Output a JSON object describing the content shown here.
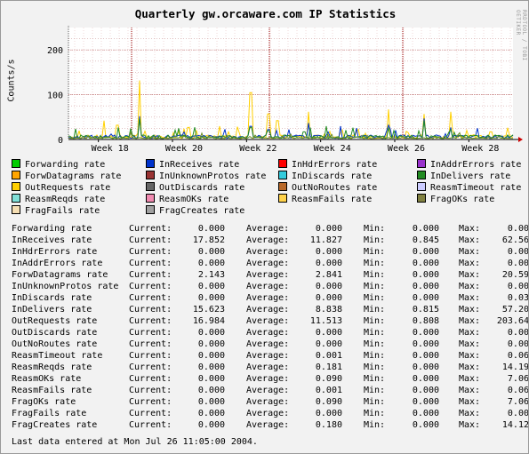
{
  "chart_data": {
    "type": "line",
    "title": "Quarterly gw.orcaware.com IP Statistics",
    "ylabel": "Counts/s",
    "credit": "RRDTOOL / TOBI OETIKER",
    "ylim": [
      0,
      250
    ],
    "yticks": [
      0,
      100,
      200
    ],
    "xticks": [
      "Week 18",
      "Week 20",
      "Week 22",
      "Week 24",
      "Week 26",
      "Week 28"
    ],
    "grid": true,
    "legend_placement": "bottom",
    "series_draw": [
      {
        "name": "OutRequests rate",
        "color": "#ffd000",
        "peaks": [
          [
            0.08,
            40
          ],
          [
            0.11,
            60
          ],
          [
            0.16,
            130
          ],
          [
            0.27,
            50
          ],
          [
            0.41,
            205
          ],
          [
            0.45,
            110
          ],
          [
            0.47,
            80
          ],
          [
            0.54,
            60
          ],
          [
            0.72,
            65
          ],
          [
            0.8,
            55
          ],
          [
            0.86,
            60
          ],
          [
            0.95,
            30
          ]
        ]
      },
      {
        "name": "InReceives rate",
        "color": "#0033cc",
        "peaks": [
          [
            0.16,
            50
          ],
          [
            0.41,
            55
          ],
          [
            0.45,
            40
          ],
          [
            0.54,
            35
          ],
          [
            0.72,
            30
          ],
          [
            0.8,
            45
          ],
          [
            0.86,
            25
          ]
        ]
      },
      {
        "name": "InDelivers rate",
        "color": "#228b22",
        "peaks": [
          [
            0.16,
            45
          ],
          [
            0.41,
            50
          ],
          [
            0.45,
            35
          ],
          [
            0.53,
            30
          ],
          [
            0.72,
            25
          ],
          [
            0.8,
            40
          ],
          [
            0.86,
            20
          ]
        ]
      },
      {
        "name": "ReasmReqds rate",
        "color": "#6b8e23",
        "peaks": [
          [
            0.14,
            14
          ],
          [
            0.3,
            12
          ],
          [
            0.5,
            10
          ],
          [
            0.65,
            8
          ],
          [
            0.88,
            13
          ]
        ]
      }
    ]
  },
  "legend": [
    {
      "label": "Forwarding rate",
      "color": "#00cc00"
    },
    {
      "label": "InReceives rate",
      "color": "#0033cc"
    },
    {
      "label": "InHdrErrors rate",
      "color": "#ff0000"
    },
    {
      "label": "InAddrErrors rate",
      "color": "#9933cc"
    },
    {
      "label": "ForwDatagrams rate",
      "color": "#ffa500"
    },
    {
      "label": "InUnknownProtos rate",
      "color": "#993333"
    },
    {
      "label": "InDiscards rate",
      "color": "#33ccdd"
    },
    {
      "label": "InDelivers rate",
      "color": "#228b22"
    },
    {
      "label": "OutRequests rate",
      "color": "#ffd000"
    },
    {
      "label": "OutDiscards rate",
      "color": "#666666"
    },
    {
      "label": "OutNoRoutes rate",
      "color": "#b8692a"
    },
    {
      "label": "ReasmTimeout rate",
      "color": "#ccccff"
    },
    {
      "label": "ReasmReqds rate",
      "color": "#80e0d8"
    },
    {
      "label": "ReasmOKs rate",
      "color": "#f08ab0"
    },
    {
      "label": "ReasmFails rate",
      "color": "#ffd24a"
    },
    {
      "label": "FragOKs rate",
      "color": "#808040"
    },
    {
      "label": "FragFails rate",
      "color": "#f5deb3"
    },
    {
      "label": "FragCreates rate",
      "color": "#a0a0a0"
    }
  ],
  "stat_labels": {
    "current": "Current:",
    "average": "Average:",
    "min": "Min:",
    "max": "Max:"
  },
  "stats": [
    {
      "name": "Forwarding rate",
      "current": "0.000",
      "average": "0.000",
      "min": "0.000",
      "max": "0.00"
    },
    {
      "name": "InReceives rate",
      "current": "17.852",
      "average": "11.827",
      "min": "0.845",
      "max": "62.56"
    },
    {
      "name": "InHdrErrors rate",
      "current": "0.000",
      "average": "0.000",
      "min": "0.000",
      "max": "0.00"
    },
    {
      "name": "InAddrErrors rate",
      "current": "0.000",
      "average": "0.000",
      "min": "0.000",
      "max": "0.00"
    },
    {
      "name": "ForwDatagrams rate",
      "current": "2.143",
      "average": "2.841",
      "min": "0.000",
      "max": "20.59"
    },
    {
      "name": "InUnknownProtos rate",
      "current": "0.000",
      "average": "0.000",
      "min": "0.000",
      "max": "0.00"
    },
    {
      "name": "InDiscards rate",
      "current": "0.000",
      "average": "0.000",
      "min": "0.000",
      "max": "0.03"
    },
    {
      "name": "InDelivers rate",
      "current": "15.623",
      "average": "8.838",
      "min": "0.815",
      "max": "57.20"
    },
    {
      "name": "OutRequests rate",
      "current": "16.984",
      "average": "11.513",
      "min": "0.808",
      "max": "203.64"
    },
    {
      "name": "OutDiscards rate",
      "current": "0.000",
      "average": "0.000",
      "min": "0.000",
      "max": "0.00"
    },
    {
      "name": "OutNoRoutes rate",
      "current": "0.000",
      "average": "0.000",
      "min": "0.000",
      "max": "0.00"
    },
    {
      "name": "ReasmTimeout rate",
      "current": "0.000",
      "average": "0.001",
      "min": "0.000",
      "max": "0.06"
    },
    {
      "name": "ReasmReqds rate",
      "current": "0.000",
      "average": "0.181",
      "min": "0.000",
      "max": "14.19"
    },
    {
      "name": "ReasmOKs rate",
      "current": "0.000",
      "average": "0.090",
      "min": "0.000",
      "max": "7.06"
    },
    {
      "name": "ReasmFails rate",
      "current": "0.000",
      "average": "0.001",
      "min": "0.000",
      "max": "0.06"
    },
    {
      "name": "FragOKs rate",
      "current": "0.000",
      "average": "0.090",
      "min": "0.000",
      "max": "7.06"
    },
    {
      "name": "FragFails rate",
      "current": "0.000",
      "average": "0.000",
      "min": "0.000",
      "max": "0.00"
    },
    {
      "name": "FragCreates rate",
      "current": "0.000",
      "average": "0.180",
      "min": "0.000",
      "max": "14.12"
    }
  ],
  "footer": "Last data entered at Mon Jul 26 11:05:00 2004."
}
